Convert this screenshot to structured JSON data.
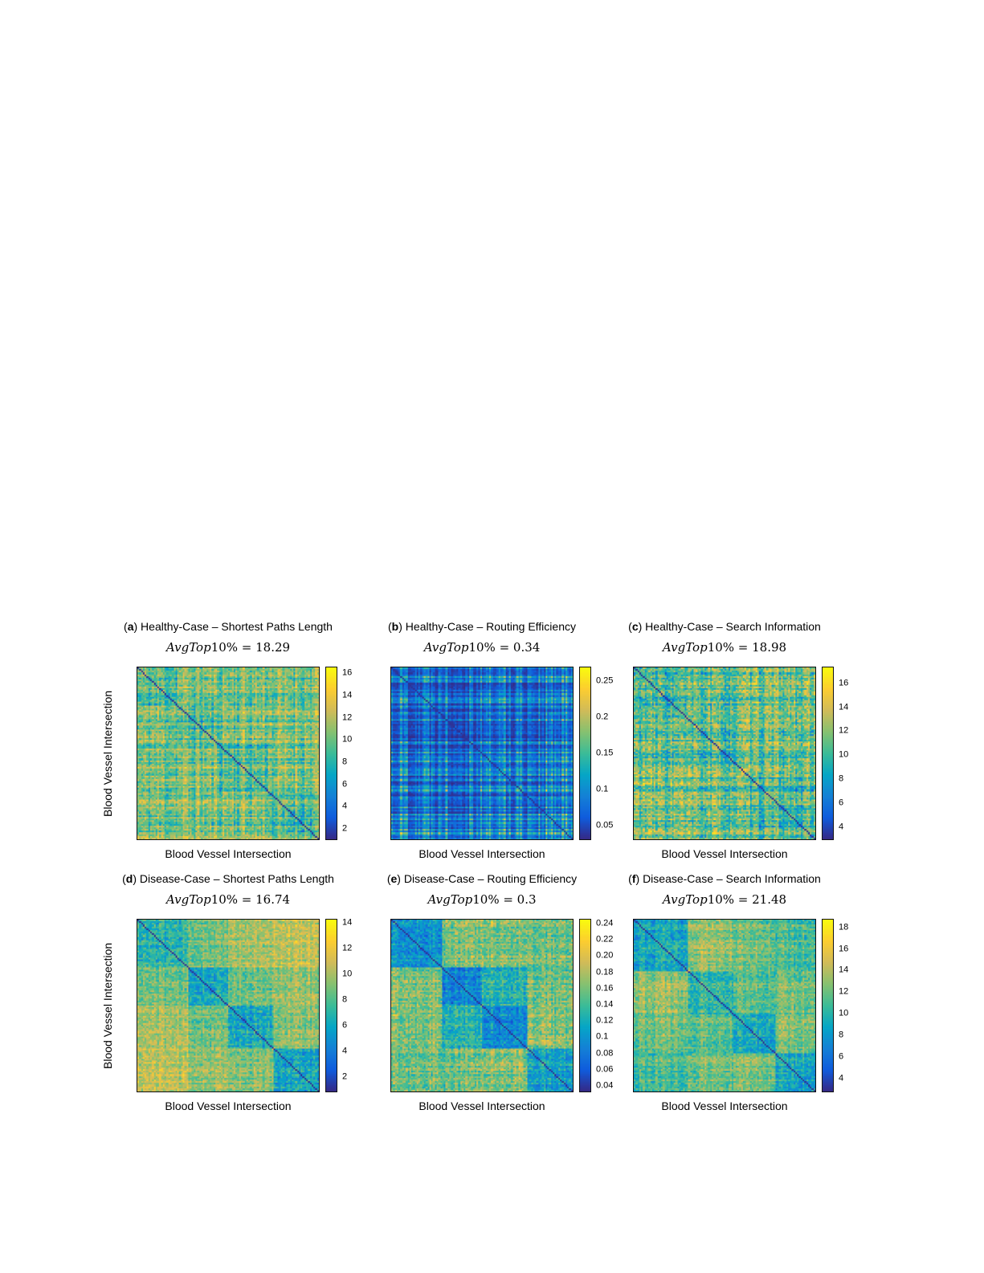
{
  "figure": {
    "background": "#ffffff",
    "colormap": "parula",
    "rows": [
      "Healthy-Case",
      "Disease-Case"
    ],
    "metrics": [
      "Shortest Paths Length",
      "Routing Efficiency",
      "Search Information"
    ]
  },
  "chart_data": [
    {
      "type": "heatmap",
      "label_open": "(",
      "label_letter": "a",
      "label_close": ")",
      "title": "Healthy-Case – Shortest Paths Length",
      "subtitle_italic": "AvgTop",
      "subtitle_rest": "10% = 18.29",
      "avg_top10_percent": 18.29,
      "xlabel": "Blood Vessel Intersection",
      "ylabel": "Blood Vessel Intersection",
      "colormap": "parula",
      "colorbar": {
        "min": 1.0,
        "max": 16.6,
        "ticks": [
          16,
          14,
          12,
          10,
          8,
          6,
          4,
          2
        ],
        "tick_labels": [
          "16",
          "14",
          "12",
          "10",
          "8",
          "6",
          "4",
          "2"
        ]
      },
      "matrix_spec": {
        "size": 100,
        "symmetric": true,
        "pattern": "fine-striped",
        "seed": 11,
        "cluster_bounds": [
          0.22,
          0.45,
          0.72
        ],
        "w_block": 0.16,
        "w_stripe": 0.54,
        "w_noise": 0.3,
        "gamma": 0.8,
        "diagonal_value": 0.02
      }
    },
    {
      "type": "heatmap",
      "label_open": "(",
      "label_letter": "b",
      "label_close": ")",
      "title": "Healthy-Case – Routing Efficiency",
      "subtitle_italic": "AvgTop",
      "subtitle_rest": "10% = 0.34",
      "avg_top10_percent": 0.34,
      "xlabel": "Blood Vessel Intersection",
      "ylabel": null,
      "colormap": "parula",
      "colorbar": {
        "min": 0.03,
        "max": 0.27,
        "ticks": [
          0.25,
          0.2,
          0.15,
          0.1,
          0.05
        ],
        "tick_labels": [
          "0.25",
          "0.2",
          "0.15",
          "0.1",
          "0.05"
        ]
      },
      "matrix_spec": {
        "size": 100,
        "symmetric": true,
        "pattern": "sparse-bright-stripes",
        "seed": 22,
        "cluster_bounds": [],
        "w_block": 0.0,
        "w_stripe": 0.85,
        "w_noise": 0.15,
        "gamma": 2.0,
        "diagonal_value": 0.02
      }
    },
    {
      "type": "heatmap",
      "label_open": "(",
      "label_letter": "c",
      "label_close": ")",
      "title": "Healthy-Case – Search Information",
      "subtitle_italic": "AvgTop",
      "subtitle_rest": "10% = 18.98",
      "avg_top10_percent": 18.98,
      "xlabel": "Blood Vessel Intersection",
      "ylabel": null,
      "colormap": "parula",
      "colorbar": {
        "min": 2.9,
        "max": 17.4,
        "ticks": [
          16,
          14,
          12,
          10,
          8,
          6,
          4
        ],
        "tick_labels": [
          "16",
          "14",
          "12",
          "10",
          "8",
          "6",
          "4"
        ]
      },
      "matrix_spec": {
        "size": 100,
        "symmetric": true,
        "pattern": "fine-striped",
        "seed": 33,
        "cluster_bounds": [
          0.3,
          0.6
        ],
        "w_block": 0.15,
        "w_stripe": 0.5,
        "w_noise": 0.35,
        "gamma": 0.95,
        "diagonal_value": 0.02
      }
    },
    {
      "type": "heatmap",
      "label_open": "(",
      "label_letter": "d",
      "label_close": ")",
      "title": "Disease-Case – Shortest Paths Length",
      "subtitle_italic": "AvgTop",
      "subtitle_rest": "10% = 16.74",
      "avg_top10_percent": 16.74,
      "xlabel": "Blood Vessel Intersection",
      "ylabel": "Blood Vessel Intersection",
      "colormap": "parula",
      "colorbar": {
        "min": 0.8,
        "max": 14.3,
        "ticks": [
          14,
          12,
          10,
          8,
          6,
          4,
          2
        ],
        "tick_labels": [
          "14",
          "12",
          "10",
          "8",
          "6",
          "4",
          "2"
        ]
      },
      "matrix_spec": {
        "size": 100,
        "symmetric": true,
        "pattern": "blocky-communities",
        "seed": 44,
        "cluster_bounds": [
          0.28,
          0.5,
          0.75
        ],
        "w_block": 0.52,
        "w_stripe": 0.22,
        "w_noise": 0.26,
        "gamma": 0.85,
        "diagonal_value": 0.02
      }
    },
    {
      "type": "heatmap",
      "label_open": "(",
      "label_letter": "e",
      "label_close": ")",
      "title": "Disease-Case – Routing Efficiency",
      "subtitle_italic": "AvgTop",
      "subtitle_rest": "10% = 0.3",
      "avg_top10_percent": 0.3,
      "xlabel": "Blood Vessel Intersection",
      "ylabel": null,
      "colormap": "parula",
      "colorbar": {
        "min": 0.032,
        "max": 0.246,
        "ticks": [
          0.24,
          0.22,
          0.2,
          0.18,
          0.16,
          0.14,
          0.12,
          0.1,
          0.08,
          0.06,
          0.04
        ],
        "tick_labels": [
          "0.24",
          "0.22",
          "0.20",
          "0.18",
          "0.16",
          "0.14",
          "0.12",
          "0.1",
          "0.08",
          "0.06",
          "0.04"
        ]
      },
      "matrix_spec": {
        "size": 100,
        "symmetric": true,
        "pattern": "blocky-communities",
        "seed": 55,
        "cluster_bounds": [
          0.28,
          0.5,
          0.75
        ],
        "w_block": 0.5,
        "w_stripe": 0.25,
        "w_noise": 0.25,
        "gamma": 1.2,
        "diagonal_value": 0.02
      }
    },
    {
      "type": "heatmap",
      "label_open": "(",
      "label_letter": "f",
      "label_close": ")",
      "title": "Disease-Case – Search Information",
      "subtitle_italic": "AvgTop",
      "subtitle_rest": "10% = 21.48",
      "avg_top10_percent": 21.48,
      "xlabel": "Blood Vessel Intersection",
      "ylabel": null,
      "colormap": "parula",
      "colorbar": {
        "min": 2.7,
        "max": 18.8,
        "ticks": [
          18,
          16,
          14,
          12,
          10,
          8,
          6,
          4
        ],
        "tick_labels": [
          "18",
          "16",
          "14",
          "12",
          "10",
          "8",
          "6",
          "4"
        ]
      },
      "matrix_spec": {
        "size": 100,
        "symmetric": true,
        "pattern": "blocky-communities",
        "seed": 66,
        "cluster_bounds": [
          0.3,
          0.55,
          0.78
        ],
        "w_block": 0.5,
        "w_stripe": 0.25,
        "w_noise": 0.25,
        "gamma": 0.9,
        "diagonal_value": 0.02
      }
    }
  ]
}
